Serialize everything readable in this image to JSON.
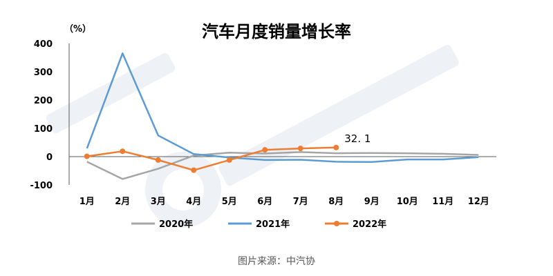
{
  "footer": {
    "source": "图片来源：中汽协"
  },
  "chart_data": {
    "type": "line",
    "title": "汽车月度销量增长率",
    "unit_label": "（%）",
    "categories": [
      "1月",
      "2月",
      "3月",
      "4月",
      "5月",
      "6月",
      "7月",
      "8月",
      "9月",
      "10月",
      "11月",
      "12月"
    ],
    "ylim": [
      -100,
      400
    ],
    "yticks": [
      -100,
      0,
      100,
      200,
      300,
      400
    ],
    "grid": false,
    "legend_position": "bottom",
    "series": [
      {
        "name": "2020年",
        "color": "#a5a5a5",
        "markers": false,
        "values": [
          -18,
          -79,
          -43,
          4,
          14,
          11,
          16,
          12,
          13,
          12,
          10,
          6
        ]
      },
      {
        "name": "2021年",
        "color": "#5b9bd5",
        "markers": false,
        "values": [
          29,
          365,
          75,
          9,
          -3,
          -12,
          -11,
          -18,
          -19,
          -10,
          -10,
          -2
        ]
      },
      {
        "name": "2022年",
        "color": "#ed7d31",
        "markers": true,
        "values": [
          1,
          19,
          -12,
          -48,
          -12,
          24,
          29,
          32.1,
          null,
          null,
          null,
          null
        ]
      }
    ],
    "annotations": [
      {
        "text": "32. 1"
      }
    ]
  }
}
